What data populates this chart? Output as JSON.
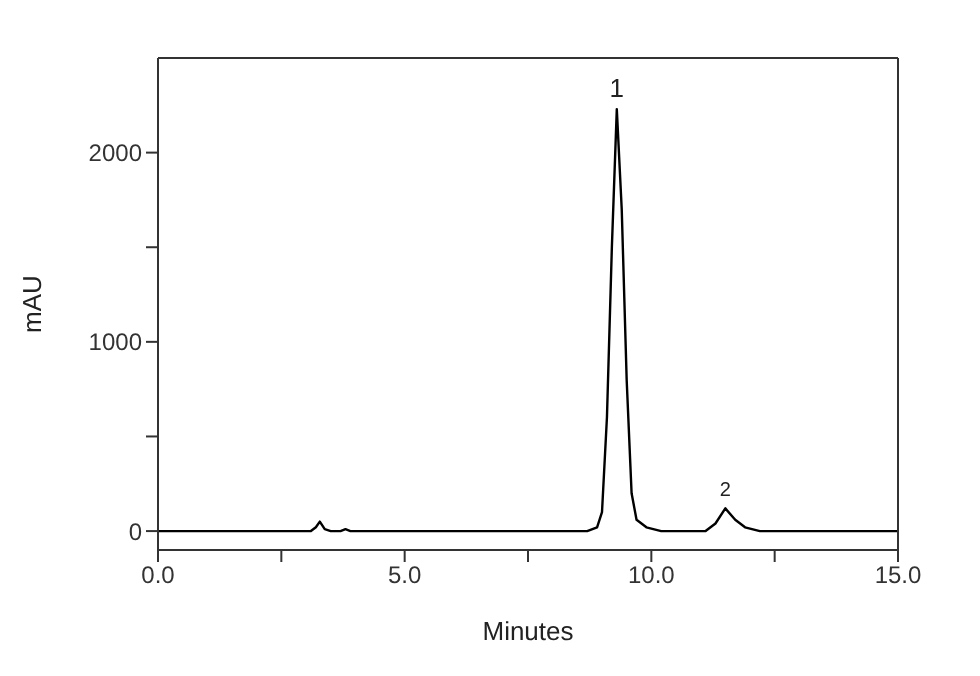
{
  "chart_data": {
    "type": "line",
    "xlabel": "Minutes",
    "ylabel": "mAU",
    "x": [
      0,
      3.1,
      3.2,
      3.28,
      3.38,
      3.5,
      3.7,
      3.8,
      3.9,
      8.7,
      8.9,
      9.0,
      9.1,
      9.2,
      9.3,
      9.4,
      9.5,
      9.6,
      9.7,
      9.9,
      10.2,
      11.1,
      11.3,
      11.5,
      11.7,
      11.9,
      12.2,
      15
    ],
    "series": [
      {
        "color": "#000000",
        "values": [
          0,
          0,
          20,
          50,
          10,
          0,
          0,
          10,
          0,
          0,
          20,
          100,
          600,
          1500,
          2230,
          1700,
          800,
          200,
          60,
          20,
          0,
          0,
          40,
          120,
          60,
          20,
          0,
          0
        ]
      }
    ],
    "xlim": [
      0,
      15
    ],
    "xticks": [
      {
        "value": 0,
        "label": "0.0"
      },
      {
        "value": 2.5,
        "label": null
      },
      {
        "value": 5,
        "label": "5.0"
      },
      {
        "value": 7.5,
        "label": null
      },
      {
        "value": 10,
        "label": "10.0"
      },
      {
        "value": 12.5,
        "label": null
      },
      {
        "value": 15,
        "label": "15.0"
      }
    ],
    "ylim": [
      -100,
      2500
    ],
    "yticks": [
      0,
      {
        "value": 500,
        "label": null
      },
      1000,
      {
        "value": 1500,
        "label": null
      },
      2000
    ],
    "annotations": [
      {
        "text": "1",
        "x": 9.3,
        "y": 2230
      },
      {
        "text": "2",
        "x": 11.5,
        "y": 120
      }
    ],
    "grid": false,
    "legend": false,
    "marker": "none",
    "line_style": "solid"
  }
}
